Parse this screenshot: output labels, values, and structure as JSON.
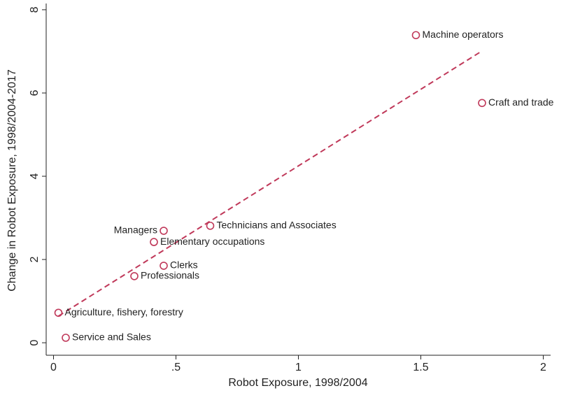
{
  "chart_data": {
    "type": "scatter",
    "x_label": "Robot Exposure, 1998/2004",
    "y_label": "Change in Robot Exposure, 1998/2004-2017",
    "x": [
      1.48,
      1.75,
      0.64,
      0.45,
      0.41,
      0.45,
      0.33,
      0.02,
      0.05
    ],
    "y": [
      7.39,
      5.76,
      2.81,
      2.69,
      2.42,
      1.85,
      1.6,
      0.72,
      0.12
    ],
    "labels": [
      "Machine operators",
      "Craft and trade",
      "Technicians and Associates",
      "Managers",
      "Elementary occupations",
      "Clerks",
      "Professionals",
      "Agriculture, fishery, forestry",
      "Service and Sales"
    ],
    "label_side": [
      "right",
      "right",
      "right",
      "left",
      "right",
      "right",
      "right",
      "right",
      "right"
    ],
    "color": "#c0395a",
    "fit_line": {
      "x": [
        0.02,
        1.75
      ],
      "y": [
        0.64,
        7.01
      ],
      "color": "#c0395a",
      "dash": true
    },
    "xlim": [
      -0.03,
      2.03
    ],
    "ylim": [
      -0.3,
      8.15
    ],
    "xticks": [
      0,
      {
        "value": 0.5,
        "label": ".5"
      },
      1,
      1.5,
      2
    ],
    "yticks": [
      0,
      2,
      4,
      6,
      8
    ],
    "grid": false
  }
}
